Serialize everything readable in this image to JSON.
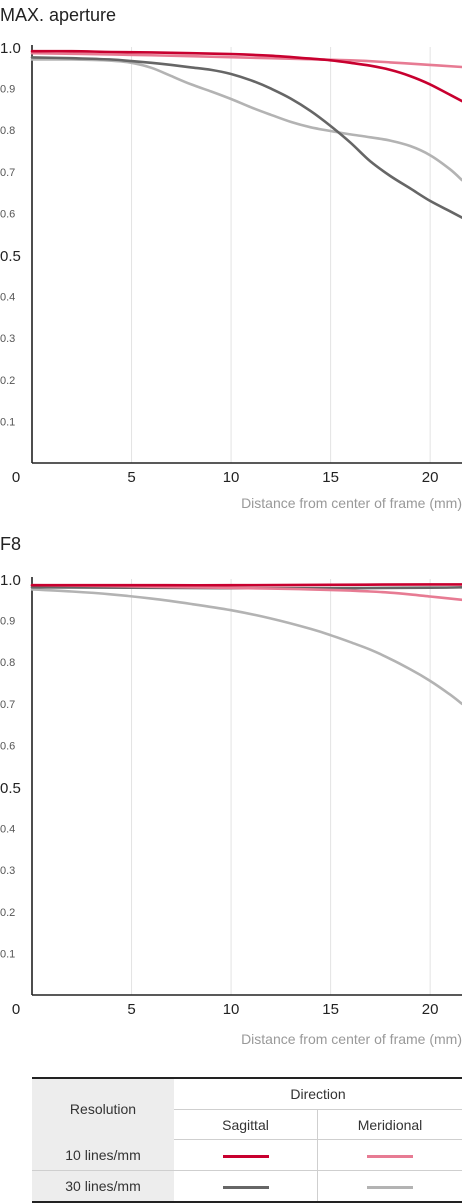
{
  "chart_data": [
    {
      "type": "line",
      "title": "MAX. aperture",
      "xlabel": "Distance from center of frame (mm)",
      "ylabel": "",
      "xlim": [
        0,
        21.6
      ],
      "ylim": [
        0,
        1.0
      ],
      "x_ticks": [
        "0",
        "5",
        "10",
        "15",
        "20"
      ],
      "y_ticks": [
        "1.0",
        "0.9",
        "0.8",
        "0.7",
        "0.6",
        "0.5",
        "0.4",
        "0.3",
        "0.2",
        "0.1"
      ],
      "grid": "vertical",
      "series": [
        {
          "color": "#c8002f",
          "x": [
            0,
            2,
            4,
            6,
            8,
            10,
            12,
            14,
            15,
            16,
            17,
            18,
            19,
            20,
            21,
            21.6
          ],
          "y": [
            0.99,
            0.99,
            0.988,
            0.987,
            0.985,
            0.983,
            0.979,
            0.972,
            0.968,
            0.962,
            0.955,
            0.945,
            0.93,
            0.91,
            0.885,
            0.87
          ]
        },
        {
          "color": "#e77b93",
          "x": [
            0,
            4,
            8,
            12,
            16,
            18,
            20,
            21.6
          ],
          "y": [
            0.985,
            0.982,
            0.978,
            0.973,
            0.968,
            0.963,
            0.957,
            0.952
          ]
        },
        {
          "color": "#666666",
          "x": [
            0,
            2,
            4,
            5,
            6,
            7,
            8,
            9,
            10,
            11,
            12,
            13,
            14,
            15,
            16,
            17,
            18,
            19,
            20,
            21,
            21.6
          ],
          "y": [
            0.975,
            0.973,
            0.97,
            0.966,
            0.962,
            0.957,
            0.951,
            0.945,
            0.935,
            0.92,
            0.9,
            0.876,
            0.846,
            0.81,
            0.77,
            0.725,
            0.69,
            0.66,
            0.63,
            0.605,
            0.59
          ]
        },
        {
          "color": "#b3b3b3",
          "x": [
            0,
            2,
            4,
            5,
            6,
            7,
            8,
            9,
            10,
            11,
            12,
            13,
            14,
            15,
            16,
            17,
            18,
            19,
            20,
            21,
            21.6
          ],
          "y": [
            0.97,
            0.97,
            0.967,
            0.962,
            0.95,
            0.93,
            0.91,
            0.893,
            0.875,
            0.855,
            0.837,
            0.82,
            0.807,
            0.798,
            0.79,
            0.783,
            0.775,
            0.762,
            0.74,
            0.706,
            0.68
          ]
        }
      ]
    },
    {
      "type": "line",
      "title": "F8",
      "xlabel": "Distance from center of frame (mm)",
      "ylabel": "",
      "xlim": [
        0,
        21.6
      ],
      "ylim": [
        0,
        1.0
      ],
      "x_ticks": [
        "0",
        "5",
        "10",
        "15",
        "20"
      ],
      "y_ticks": [
        "1.0",
        "0.9",
        "0.8",
        "0.7",
        "0.6",
        "0.5",
        "0.4",
        "0.3",
        "0.2",
        "0.1"
      ],
      "grid": "vertical",
      "series": [
        {
          "color": "#c8002f",
          "x": [
            0,
            5,
            10,
            15,
            20,
            21.6
          ],
          "y": [
            0.985,
            0.985,
            0.985,
            0.986,
            0.987,
            0.987
          ]
        },
        {
          "color": "#e77b93",
          "x": [
            0,
            4,
            8,
            12,
            14,
            16,
            17,
            18,
            19,
            20,
            21,
            21.6
          ],
          "y": [
            0.985,
            0.983,
            0.98,
            0.977,
            0.975,
            0.972,
            0.97,
            0.967,
            0.963,
            0.958,
            0.953,
            0.95
          ]
        },
        {
          "color": "#666666",
          "x": [
            0,
            5,
            10,
            15,
            20,
            21.6
          ],
          "y": [
            0.98,
            0.979,
            0.978,
            0.978,
            0.979,
            0.98
          ]
        },
        {
          "color": "#b3b3b3",
          "x": [
            0,
            2,
            4,
            6,
            8,
            10,
            12,
            14,
            15,
            16,
            17,
            18,
            19,
            20,
            21,
            21.6
          ],
          "y": [
            0.975,
            0.97,
            0.963,
            0.953,
            0.94,
            0.925,
            0.905,
            0.88,
            0.865,
            0.848,
            0.83,
            0.808,
            0.783,
            0.755,
            0.722,
            0.7
          ]
        }
      ]
    }
  ],
  "legend": {
    "resolution_header": "Resolution",
    "direction_header": "Direction",
    "sagittal_header": "Sagittal",
    "meridional_header": "Meridional",
    "row_10": "10 lines/mm",
    "row_30": "30 lines/mm",
    "color_10_sagittal": "#c8002f",
    "color_10_meridional": "#e77b93",
    "color_30_sagittal": "#666666",
    "color_30_meridional": "#b3b3b3"
  }
}
